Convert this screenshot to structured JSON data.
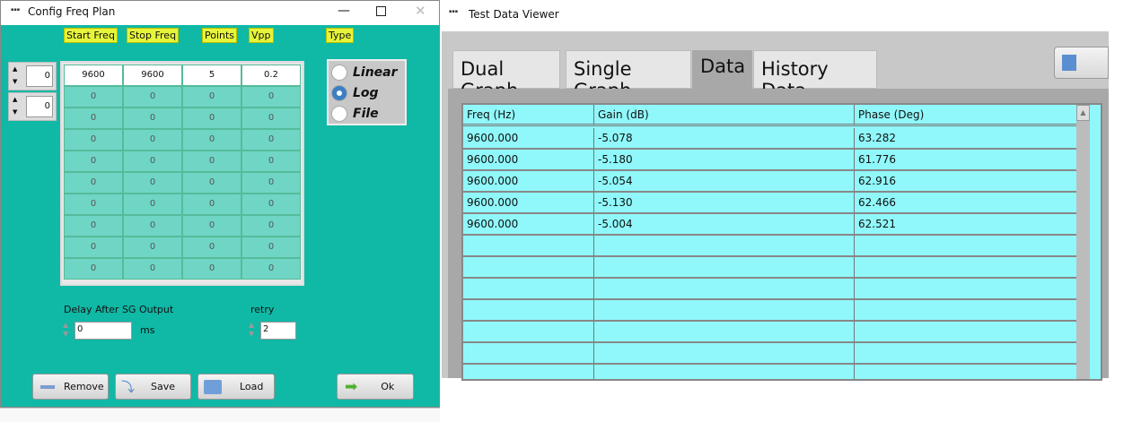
{
  "config": {
    "title": "Config Freq Plan",
    "logo": "MNI LET",
    "headers": [
      "Start Freq",
      "Stop Freq",
      "Points",
      "Vpp",
      "Type"
    ],
    "index_spinners": [
      "0",
      "0"
    ],
    "rows": [
      [
        "9600",
        "9600",
        "5",
        "0.2"
      ],
      [
        "0",
        "0",
        "0",
        "0"
      ],
      [
        "0",
        "0",
        "0",
        "0"
      ],
      [
        "0",
        "0",
        "0",
        "0"
      ],
      [
        "0",
        "0",
        "0",
        "0"
      ],
      [
        "0",
        "0",
        "0",
        "0"
      ],
      [
        "0",
        "0",
        "0",
        "0"
      ],
      [
        "0",
        "0",
        "0",
        "0"
      ],
      [
        "0",
        "0",
        "0",
        "0"
      ],
      [
        "0",
        "0",
        "0",
        "0"
      ]
    ],
    "type_options": [
      "Linear",
      "Log",
      "File"
    ],
    "type_selected": "Log",
    "delay_label": "Delay After SG Output",
    "delay_value": "0",
    "delay_unit": "ms",
    "retry_label": "retry",
    "retry_value": "2",
    "buttons": {
      "remove": "Remove",
      "save": "Save",
      "load": "Load",
      "ok": "Ok"
    }
  },
  "viewer": {
    "title": "Test Data Viewer",
    "logo": "MNI LET",
    "tabs": [
      "Dual Graph",
      "Single Graph",
      "Data",
      "History Data"
    ],
    "active_tab": "Data",
    "columns": [
      "Freq (Hz)",
      "Gain (dB)",
      "Phase (Deg)"
    ],
    "rows": [
      [
        "9600.000",
        "-5.078",
        "63.282"
      ],
      [
        "9600.000",
        "-5.180",
        "61.776"
      ],
      [
        "9600.000",
        "-5.054",
        "62.916"
      ],
      [
        "9600.000",
        "-5.130",
        "62.466"
      ],
      [
        "9600.000",
        "-5.004",
        "62.521"
      ]
    ]
  },
  "colors": {
    "teal": "#10b8a6",
    "label_yellow": "#e6f53a",
    "table_cyan": "#90f8fa"
  }
}
